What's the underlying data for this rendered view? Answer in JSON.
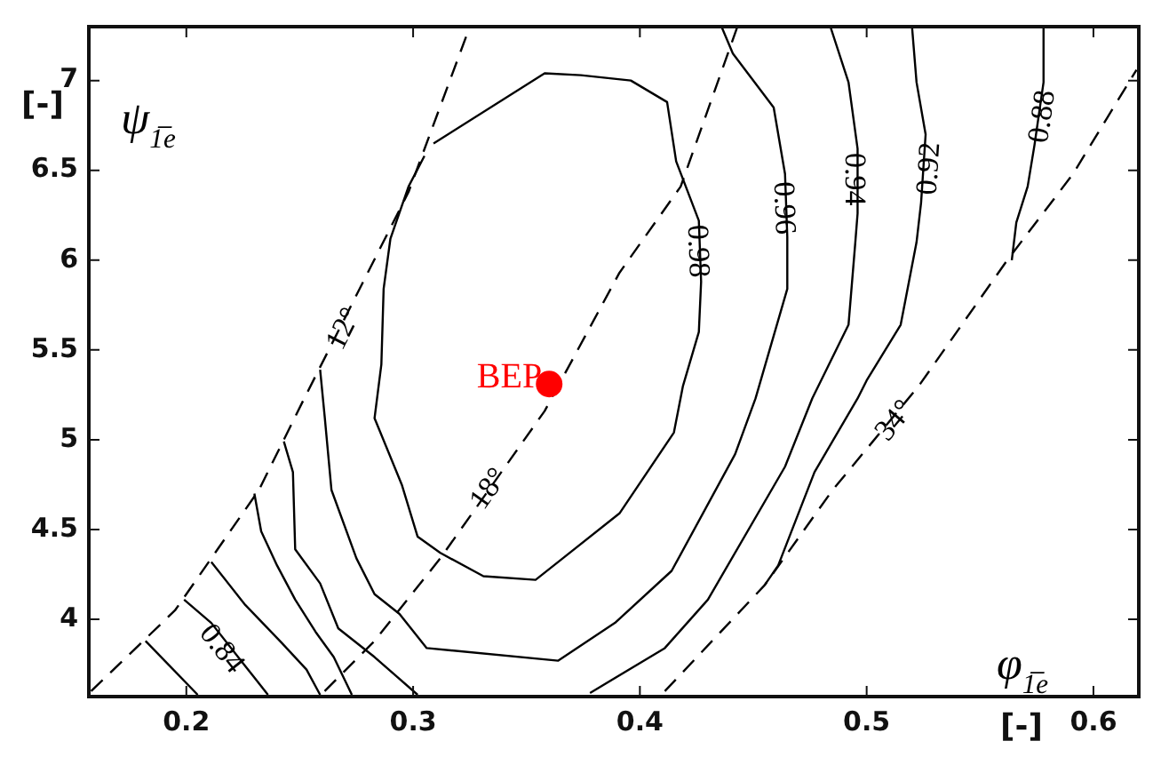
{
  "chart_data": {
    "type": "line",
    "xlabel": "φ$_{1̅e}$",
    "ylabel": "ψ$_{1̅e}$",
    "xlim": [
      0.157,
      0.62
    ],
    "ylim": [
      3.57,
      7.3
    ],
    "xticks": [
      0.2,
      0.3,
      0.4,
      0.5,
      0.6
    ],
    "yticks": [
      4,
      4.5,
      5,
      5.5,
      6,
      6.5,
      7
    ],
    "grid": false,
    "legend": false,
    "marker": "none",
    "line_style": "solid",
    "series": [
      {
        "color": "#000000",
        "x": [
          0.309,
          0.358,
          0.374,
          0.396,
          0.412,
          0.416,
          0.426,
          0.427,
          0.426,
          0.419,
          0.415,
          0.391,
          0.366,
          0.354,
          0.331,
          0.312,
          0.302,
          0.295,
          0.283,
          0.286,
          0.287,
          0.29,
          0.298,
          0.305
        ],
        "values": [
          6.65,
          7.04,
          7.03,
          7.0,
          6.88,
          6.55,
          6.22,
          5.88,
          5.6,
          5.3,
          5.04,
          4.59,
          4.34,
          4.22,
          4.24,
          4.37,
          4.46,
          4.75,
          5.12,
          5.42,
          5.84,
          6.12,
          6.41,
          6.58
        ]
      },
      {
        "color": "#000000",
        "x": [
          0.436,
          0.441,
          0.459,
          0.464,
          0.465,
          0.465,
          0.451,
          0.442,
          0.414,
          0.389,
          0.364,
          0.306,
          0.294,
          0.283,
          0.275,
          0.264,
          0.261,
          0.259
        ],
        "values": [
          7.3,
          7.15,
          6.85,
          6.48,
          6.13,
          5.84,
          5.23,
          4.92,
          4.27,
          3.98,
          3.77,
          3.84,
          4.03,
          4.14,
          4.34,
          4.72,
          5.13,
          5.39
        ]
      },
      {
        "color": "#000000",
        "x": [
          0.484,
          0.492,
          0.496,
          0.496,
          0.495,
          0.492,
          0.476,
          0.464,
          0.43,
          0.411,
          0.378
        ],
        "values": [
          7.3,
          6.99,
          6.62,
          6.26,
          6.1,
          5.64,
          5.23,
          4.85,
          4.11,
          3.84,
          3.59
        ]
      },
      {
        "color": "#000000",
        "x": [
          0.52,
          0.522,
          0.526,
          0.524,
          0.522,
          0.515,
          0.5,
          0.496,
          0.477,
          0.461,
          0.455
        ],
        "values": [
          7.3,
          6.99,
          6.7,
          6.32,
          6.1,
          5.64,
          5.33,
          5.23,
          4.82,
          4.3,
          4.19
        ]
      },
      {
        "color": "#000000",
        "x": [
          0.578,
          0.578,
          0.574,
          0.571,
          0.566,
          0.564
        ],
        "values": [
          7.3,
          6.99,
          6.64,
          6.41,
          6.21,
          6.0
        ]
      },
      {
        "color": "#000000",
        "x": [
          0.243,
          0.247,
          0.248,
          0.259,
          0.267,
          0.283,
          0.302
        ],
        "values": [
          4.99,
          4.82,
          4.39,
          4.2,
          3.95,
          3.79,
          3.58
        ]
      },
      {
        "color": "#000000",
        "x": [
          0.23,
          0.233,
          0.24,
          0.248,
          0.257,
          0.265,
          0.273
        ],
        "values": [
          4.7,
          4.49,
          4.3,
          4.11,
          3.93,
          3.79,
          3.58
        ]
      },
      {
        "color": "#000000",
        "x": [
          0.211,
          0.226,
          0.242,
          0.253,
          0.259
        ],
        "values": [
          4.32,
          4.08,
          3.87,
          3.72,
          3.58
        ]
      },
      {
        "color": "#000000",
        "x": [
          0.199,
          0.211,
          0.226,
          0.236
        ],
        "values": [
          4.11,
          3.98,
          3.74,
          3.58
        ]
      },
      {
        "color": "#000000",
        "x": [
          0.182,
          0.205
        ],
        "values": [
          3.88,
          3.58
        ]
      },
      {
        "color": "#000000",
        "line_style": "dashed",
        "x": [
          0.158,
          0.195,
          0.232,
          0.252,
          0.278,
          0.298,
          0.325
        ],
        "values": [
          3.6,
          4.05,
          4.72,
          5.23,
          5.88,
          6.38,
          7.3
        ]
      },
      {
        "color": "#000000",
        "line_style": "dashed",
        "x": [
          0.261,
          0.283,
          0.312,
          0.358,
          0.391,
          0.418,
          0.443
        ],
        "values": [
          3.6,
          3.88,
          4.34,
          5.16,
          5.93,
          6.41,
          7.3
        ]
      },
      {
        "color": "#000000",
        "line_style": "dashed",
        "x": [
          0.411,
          0.455,
          0.485,
          0.523,
          0.562,
          0.591,
          0.619
        ],
        "values": [
          3.6,
          4.19,
          4.72,
          5.3,
          6.0,
          6.48,
          7.06
        ]
      },
      {
        "type": "scatter",
        "name": "BEP",
        "color": "#ff0000",
        "marker": "circle",
        "x": [
          0.36
        ],
        "values": [
          5.31
        ]
      }
    ],
    "annotations": [
      {
        "text": "0.98",
        "x": 0.426,
        "y": 6.05
      },
      {
        "text": "0.96",
        "x": 0.464,
        "y": 6.29
      },
      {
        "text": "0.94",
        "x": 0.495,
        "y": 6.45
      },
      {
        "text": "0.92",
        "x": 0.527,
        "y": 6.51
      },
      {
        "text": "0.88",
        "x": 0.577,
        "y": 6.8
      },
      {
        "text": "0.84",
        "x": 0.216,
        "y": 3.84
      },
      {
        "text": "12°",
        "x": 0.269,
        "y": 5.62
      },
      {
        "text": "18°",
        "x": 0.333,
        "y": 4.73
      },
      {
        "text": "34°",
        "x": 0.512,
        "y": 5.11
      },
      "[-]",
      "[-]"
    ]
  }
}
